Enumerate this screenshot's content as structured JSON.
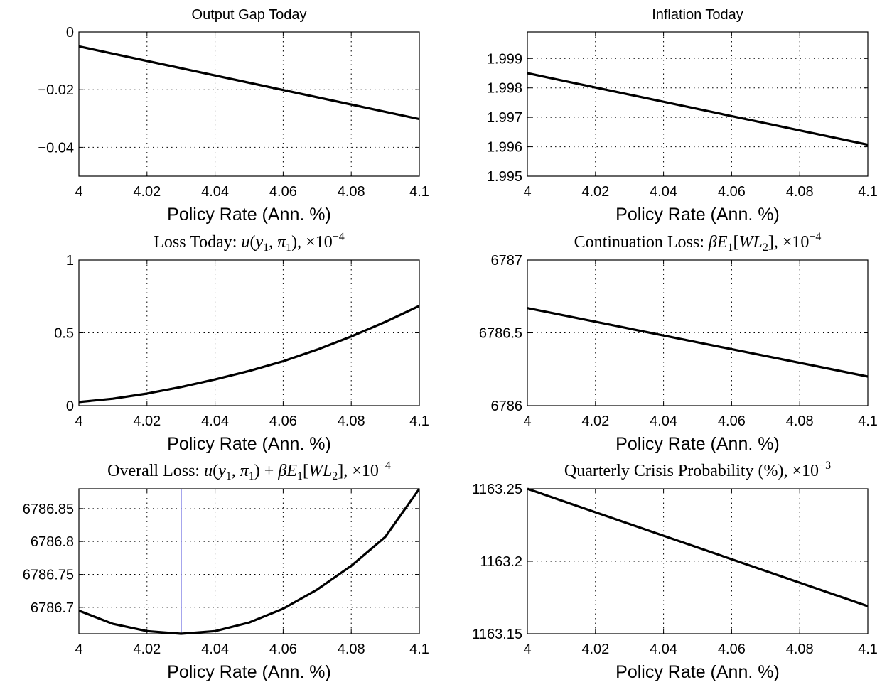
{
  "figure": {
    "background": "#ffffff",
    "line_color": "#000000",
    "marker_color": "#0000cc"
  },
  "chart_data": [
    {
      "type": "line",
      "title_segments": [
        {
          "t": "Output Gap Today"
        }
      ],
      "title_style": "sans",
      "xlabel": "Policy Rate (Ann. %)",
      "xlim": [
        4,
        4.1
      ],
      "ylim": [
        -0.05,
        0
      ],
      "xticks": [
        4,
        4.02,
        4.04,
        4.06,
        4.08,
        4.1
      ],
      "xtick_labels": [
        "4",
        "4.02",
        "4.04",
        "4.06",
        "4.08",
        "4.1"
      ],
      "yticks": [
        0,
        -0.02,
        -0.04
      ],
      "ytick_labels": [
        "0",
        "−0.02",
        "−0.04"
      ],
      "grid": true,
      "series": [
        {
          "x": [
            4,
            4.1
          ],
          "y": [
            -0.005,
            -0.0302
          ]
        }
      ]
    },
    {
      "type": "line",
      "title_segments": [
        {
          "t": "Inflation Today"
        }
      ],
      "title_style": "sans",
      "xlabel": "Policy Rate (Ann. %)",
      "xlim": [
        4,
        4.1
      ],
      "ylim": [
        1.995,
        1.9999
      ],
      "xticks": [
        4,
        4.02,
        4.04,
        4.06,
        4.08,
        4.1
      ],
      "xtick_labels": [
        "4",
        "4.02",
        "4.04",
        "4.06",
        "4.08",
        "4.1"
      ],
      "yticks": [
        1.999,
        1.998,
        1.997,
        1.996,
        1.995
      ],
      "ytick_labels": [
        "1.999",
        "1.998",
        "1.997",
        "1.996",
        "1.995"
      ],
      "grid": true,
      "series": [
        {
          "x": [
            4,
            4.1
          ],
          "y": [
            1.9985,
            1.99607
          ]
        }
      ]
    },
    {
      "type": "line",
      "title_segments": [
        {
          "t": "Loss Today: "
        },
        {
          "t": "u",
          "it": true
        },
        {
          "t": "("
        },
        {
          "t": "y",
          "it": true
        },
        {
          "t": "1",
          "sub": true
        },
        {
          "t": ", "
        },
        {
          "t": "π",
          "it": true
        },
        {
          "t": "1",
          "sub": true
        },
        {
          "t": "), ×10"
        },
        {
          "t": "−4",
          "sup": true
        }
      ],
      "title_style": "serif",
      "xlabel": "Policy Rate (Ann. %)",
      "xlim": [
        4,
        4.1
      ],
      "ylim": [
        0,
        1
      ],
      "xticks": [
        4,
        4.02,
        4.04,
        4.06,
        4.08,
        4.1
      ],
      "xtick_labels": [
        "4",
        "4.02",
        "4.04",
        "4.06",
        "4.08",
        "4.1"
      ],
      "yticks": [
        1,
        0.5,
        0
      ],
      "ytick_labels": [
        "1",
        "0.5",
        "0"
      ],
      "grid": true,
      "series": [
        {
          "x": [
            4,
            4.01,
            4.02,
            4.03,
            4.04,
            4.05,
            4.06,
            4.07,
            4.08,
            4.09,
            4.1
          ],
          "y": [
            0.025,
            0.048,
            0.083,
            0.128,
            0.18,
            0.238,
            0.305,
            0.385,
            0.475,
            0.575,
            0.685
          ]
        }
      ]
    },
    {
      "type": "line",
      "title_segments": [
        {
          "t": "Continuation Loss: "
        },
        {
          "t": "βE",
          "it": true
        },
        {
          "t": "1",
          "sub": true
        },
        {
          "t": "["
        },
        {
          "t": "WL",
          "it": true
        },
        {
          "t": "2",
          "sub": true
        },
        {
          "t": "], ×10"
        },
        {
          "t": "−4",
          "sup": true
        }
      ],
      "title_style": "serif",
      "xlabel": "Policy Rate (Ann. %)",
      "xlim": [
        4,
        4.1
      ],
      "ylim": [
        6786,
        6787
      ],
      "xticks": [
        4,
        4.02,
        4.04,
        4.06,
        4.08,
        4.1
      ],
      "xtick_labels": [
        "4",
        "4.02",
        "4.04",
        "4.06",
        "4.08",
        "4.1"
      ],
      "yticks": [
        6787,
        6786.5,
        6786
      ],
      "ytick_labels": [
        "6787",
        "6786.5",
        "6786"
      ],
      "grid": true,
      "series": [
        {
          "x": [
            4,
            4.1
          ],
          "y": [
            6786.67,
            6786.2
          ]
        }
      ]
    },
    {
      "type": "line",
      "title_segments": [
        {
          "t": "Overall Loss: "
        },
        {
          "t": "u",
          "it": true
        },
        {
          "t": "("
        },
        {
          "t": "y",
          "it": true
        },
        {
          "t": "1",
          "sub": true
        },
        {
          "t": ", "
        },
        {
          "t": "π",
          "it": true
        },
        {
          "t": "1",
          "sub": true
        },
        {
          "t": ") + "
        },
        {
          "t": "βE",
          "it": true
        },
        {
          "t": "1",
          "sub": true
        },
        {
          "t": "["
        },
        {
          "t": "WL",
          "it": true
        },
        {
          "t": "2",
          "sub": true
        },
        {
          "t": "], ×10"
        },
        {
          "t": "−4",
          "sup": true
        }
      ],
      "title_style": "serif",
      "xlabel": "Policy Rate (Ann. %)",
      "xlim": [
        4,
        4.1
      ],
      "ylim": [
        6786.66,
        6786.88
      ],
      "xticks": [
        4,
        4.02,
        4.04,
        4.06,
        4.08,
        4.1
      ],
      "xtick_labels": [
        "4",
        "4.02",
        "4.04",
        "4.06",
        "4.08",
        "4.1"
      ],
      "yticks": [
        6786.85,
        6786.8,
        6786.75,
        6786.7
      ],
      "ytick_labels": [
        "6786.85",
        "6786.8",
        "6786.75",
        "6786.7"
      ],
      "grid": true,
      "series": [
        {
          "x": [
            4,
            4.01,
            4.02,
            4.03,
            4.04,
            4.05,
            4.06,
            4.07,
            4.08,
            4.09,
            4.1
          ],
          "y": [
            6786.695,
            6786.675,
            6786.664,
            6786.66,
            6786.664,
            6786.677,
            6786.698,
            6786.727,
            6786.763,
            6786.807,
            6786.88
          ]
        }
      ],
      "vline": {
        "x": 4.03
      }
    },
    {
      "type": "line",
      "title_segments": [
        {
          "t": "Quarterly Crisis Probability (%), ×10"
        },
        {
          "t": "−3",
          "sup": true
        }
      ],
      "title_style": "serif",
      "xlabel": "Policy Rate (Ann. %)",
      "xlim": [
        4,
        4.1
      ],
      "ylim": [
        1163.15,
        1163.25
      ],
      "xticks": [
        4,
        4.02,
        4.04,
        4.06,
        4.08,
        4.1
      ],
      "xtick_labels": [
        "4",
        "4.02",
        "4.04",
        "4.06",
        "4.08",
        "4.1"
      ],
      "yticks": [
        1163.25,
        1163.2,
        1163.15
      ],
      "ytick_labels": [
        "1163.25",
        "1163.2",
        "1163.15"
      ],
      "grid": true,
      "series": [
        {
          "x": [
            4,
            4.1
          ],
          "y": [
            1163.25,
            1163.169
          ]
        }
      ]
    }
  ]
}
